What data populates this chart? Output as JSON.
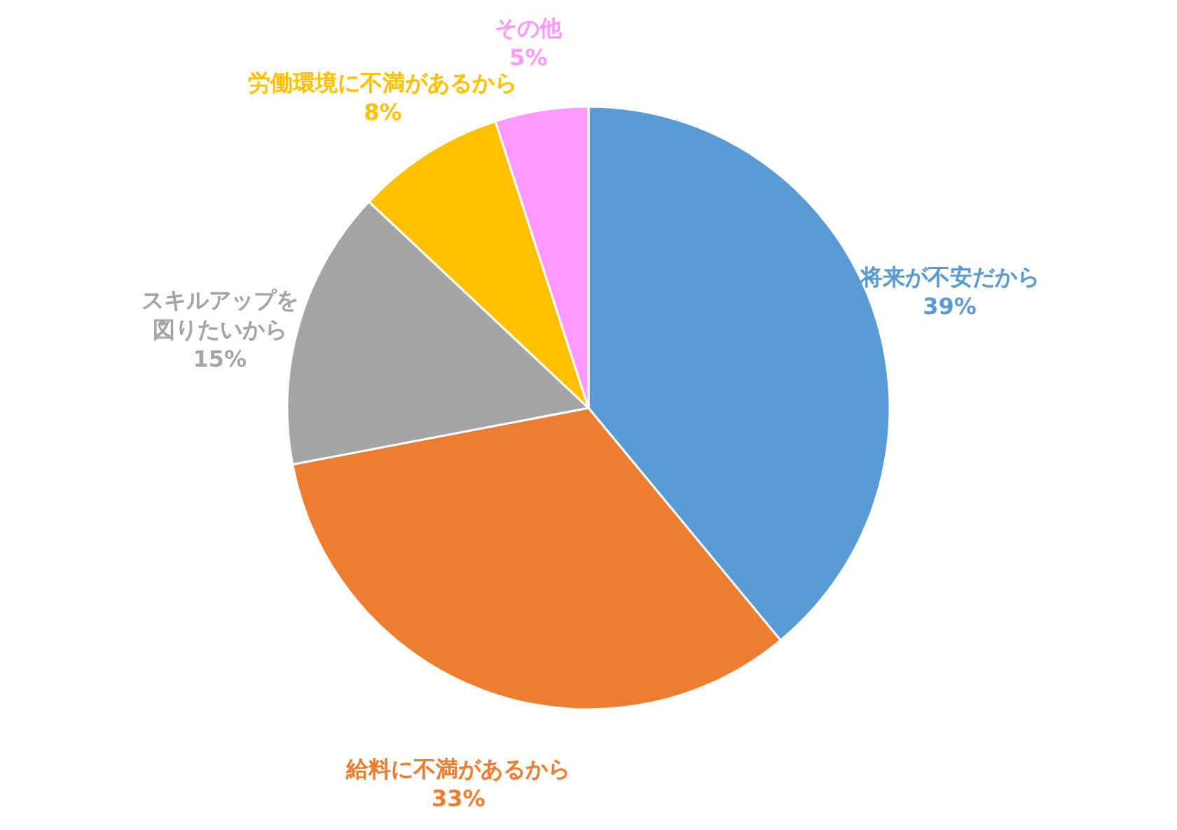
{
  "chart_data": {
    "type": "pie",
    "categories": [
      "将来が不安だから",
      "給料に不満があるから",
      "スキルアップを図りたいから",
      "労働環境に不満があるから",
      "その他"
    ],
    "values": [
      39,
      33,
      15,
      8,
      5
    ],
    "colors": [
      "#5b9bd5",
      "#ed7d31",
      "#a5a5a5",
      "#ffc000",
      "#ff99ff"
    ],
    "value_labels": [
      "39%",
      "33%",
      "15%",
      "8%",
      "5%"
    ]
  }
}
